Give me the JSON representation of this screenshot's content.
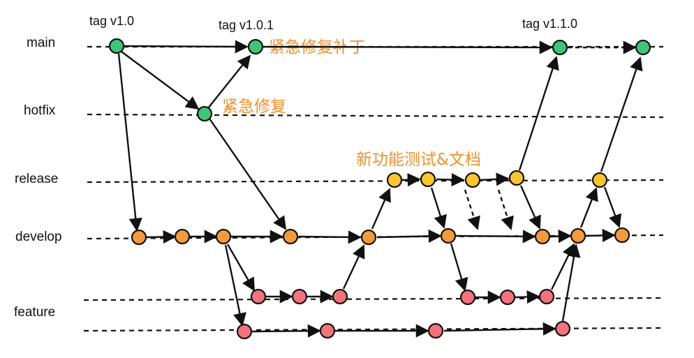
{
  "lanes": [
    {
      "id": "main",
      "label": "main"
    },
    {
      "id": "hotfix",
      "label": "hotfix"
    },
    {
      "id": "release",
      "label": "release"
    },
    {
      "id": "develop",
      "label": "develop"
    },
    {
      "id": "feature",
      "label": "feature"
    }
  ],
  "tags": [
    {
      "id": "t1",
      "label": "tag v1.0"
    },
    {
      "id": "t2",
      "label": "tag v1.0.1"
    },
    {
      "id": "t3",
      "label": "tag v1.1.0"
    }
  ],
  "notes": [
    {
      "id": "n1",
      "text": "紧急修复补丁"
    },
    {
      "id": "n2",
      "text": "紧急修复"
    },
    {
      "id": "n3",
      "text": "新功能测试&文档"
    }
  ],
  "colors": {
    "main": "#3fc47a",
    "hotfix": "#3fc47a",
    "release": "#f7c531",
    "develop": "#f39a3a",
    "feature": "#f2737b",
    "note": "#f0902a"
  }
}
